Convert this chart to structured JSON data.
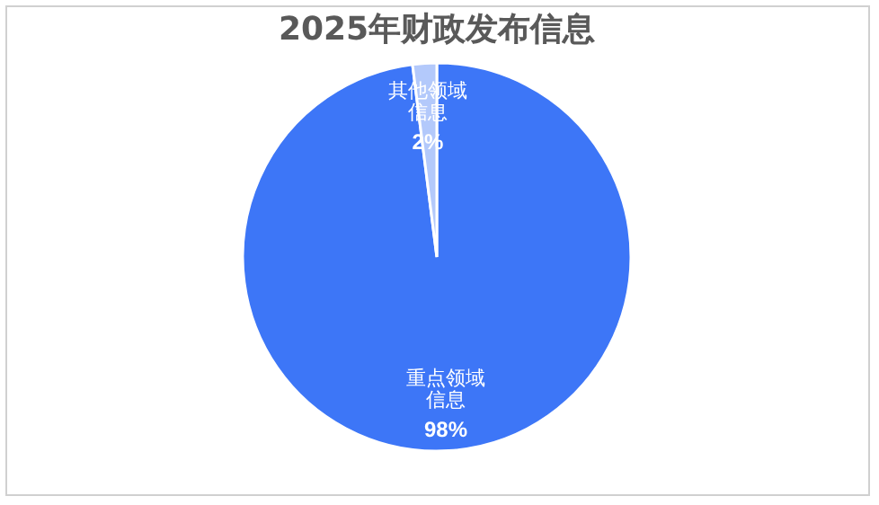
{
  "chart_data": {
    "type": "pie",
    "title": "2025年财政发布信息",
    "categories": [
      "重点领域信息",
      "其他领域信息"
    ],
    "values": [
      98,
      2
    ],
    "colors": [
      "#3d76f7",
      "#b3c9fb"
    ],
    "value_labels": [
      "98%",
      "2%"
    ],
    "legend": false
  }
}
